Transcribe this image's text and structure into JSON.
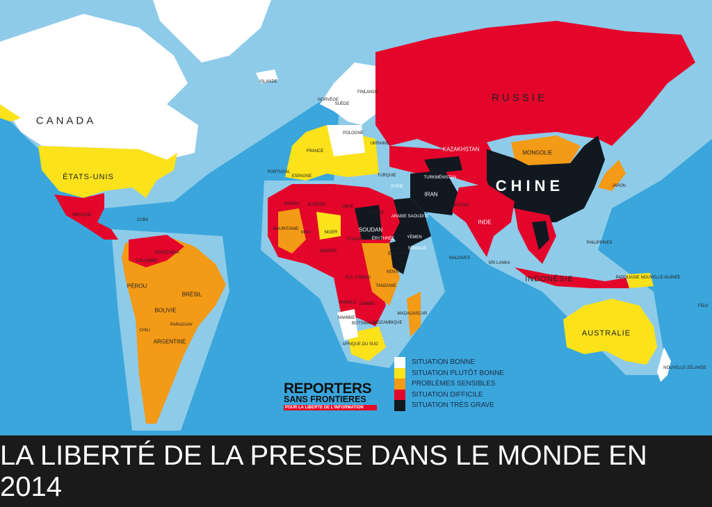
{
  "title": "LA LIBERTÉ DE LA PRESSE DANS LE MONDE EN 2014",
  "colors": {
    "ocean": "#3aa6dc",
    "shallow": "#8ecbe9",
    "bonne": "#ffffff",
    "plutot_bonne": "#fbe21b",
    "sensibles": "#f39a16",
    "difficile": "#e3052a",
    "tres_grave": "#111820"
  },
  "legend": [
    {
      "label": "SITUATION BONNE",
      "color": "#ffffff"
    },
    {
      "label": "SITUATION PLUTÔT BONNE",
      "color": "#fbe21b"
    },
    {
      "label": "PROBLÈMES SENSIBLES",
      "color": "#f39a16"
    },
    {
      "label": "SITUATION DIFFICILE",
      "color": "#e3052a"
    },
    {
      "label": "SITUATION TRÈS GRAVE",
      "color": "#111820"
    }
  ],
  "logo": {
    "line1": "REPORTERS",
    "line2": "SANS FRONTIERES",
    "tagline": "POUR LA LIBERTE DE L'INFORMATION"
  },
  "countries": {
    "canada": "CANADA",
    "usa": "ÉTATS-UNIS",
    "russie": "RUSSIE",
    "chine": "CHINE",
    "kazakhstan": "KAZAKHSTAN",
    "mongolie": "MONGOLIE",
    "iran": "IRAN",
    "inde": "INDE",
    "indonesie": "INDONÉSIE",
    "australie": "AUSTRALIE",
    "bresil": "BRÉSIL",
    "perou": "PÉROU",
    "bolivie": "BOLIVIE",
    "argentine": "ARGENTINE",
    "paraguay": "PARAGUAY",
    "chili": "CHILI",
    "mexique": "MEXIQUE",
    "cuba": "CUBA",
    "colombie": "COLOMBIE",
    "venezuela": "VENEZUELA",
    "algerie": "ALGÉRIE",
    "libye": "LIBYE",
    "egypte": "EGYPTE",
    "niger": "NIGER",
    "mali": "MALI",
    "tchad": "TCHAD",
    "mauritanie": "MAURITANIE",
    "maroc": "MAROC",
    "nigeria": "NIGERIA",
    "soudan": "SOUDAN",
    "erythree": "ÉRYTHRÉE",
    "ethiopie": "ÉTHIOPIE",
    "somalie": "SOMALIE",
    "kenya": "KENYA",
    "tanzanie": "TANZANIE",
    "rdcongo": "R.D. CONGO",
    "angola": "ANGOLA",
    "zambie": "ZAMBIE",
    "namibie": "NAMIBIE",
    "botswana": "BOTSWANA",
    "mozambique": "MOZAMBIQUE",
    "afriquedusud": "AFRIQUE DU SUD",
    "madagascar": "MADAGASCAR",
    "arabie": "ARABIE SAOUDITE",
    "yemen": "YÉMEN",
    "turquie": "TURQUIE",
    "syrie": "SYRIE",
    "turkmenistan": "TURKMÉNISTAN",
    "pakistan": "PAKISTAN",
    "france": "FRANCE",
    "espagne": "ESPAGNE",
    "portugal": "PORTUGAL",
    "islande": "ISLANDE",
    "norvege": "NORVÈGE",
    "suede": "SUÈDE",
    "finlande": "FINLANDE",
    "pologne": "POLOGNE",
    "ukraine": "UKRAINE",
    "japon": "JAPON",
    "philippines": "PHILIPPINES",
    "papouasie": "PAPOUASIE NOUVELLE-GUINÉE",
    "nzelande": "NOUVELLE-ZÉLANDE",
    "fidji": "FIDJI",
    "srilanka": "SRI LANKA",
    "maldives": "MALDIVES"
  }
}
